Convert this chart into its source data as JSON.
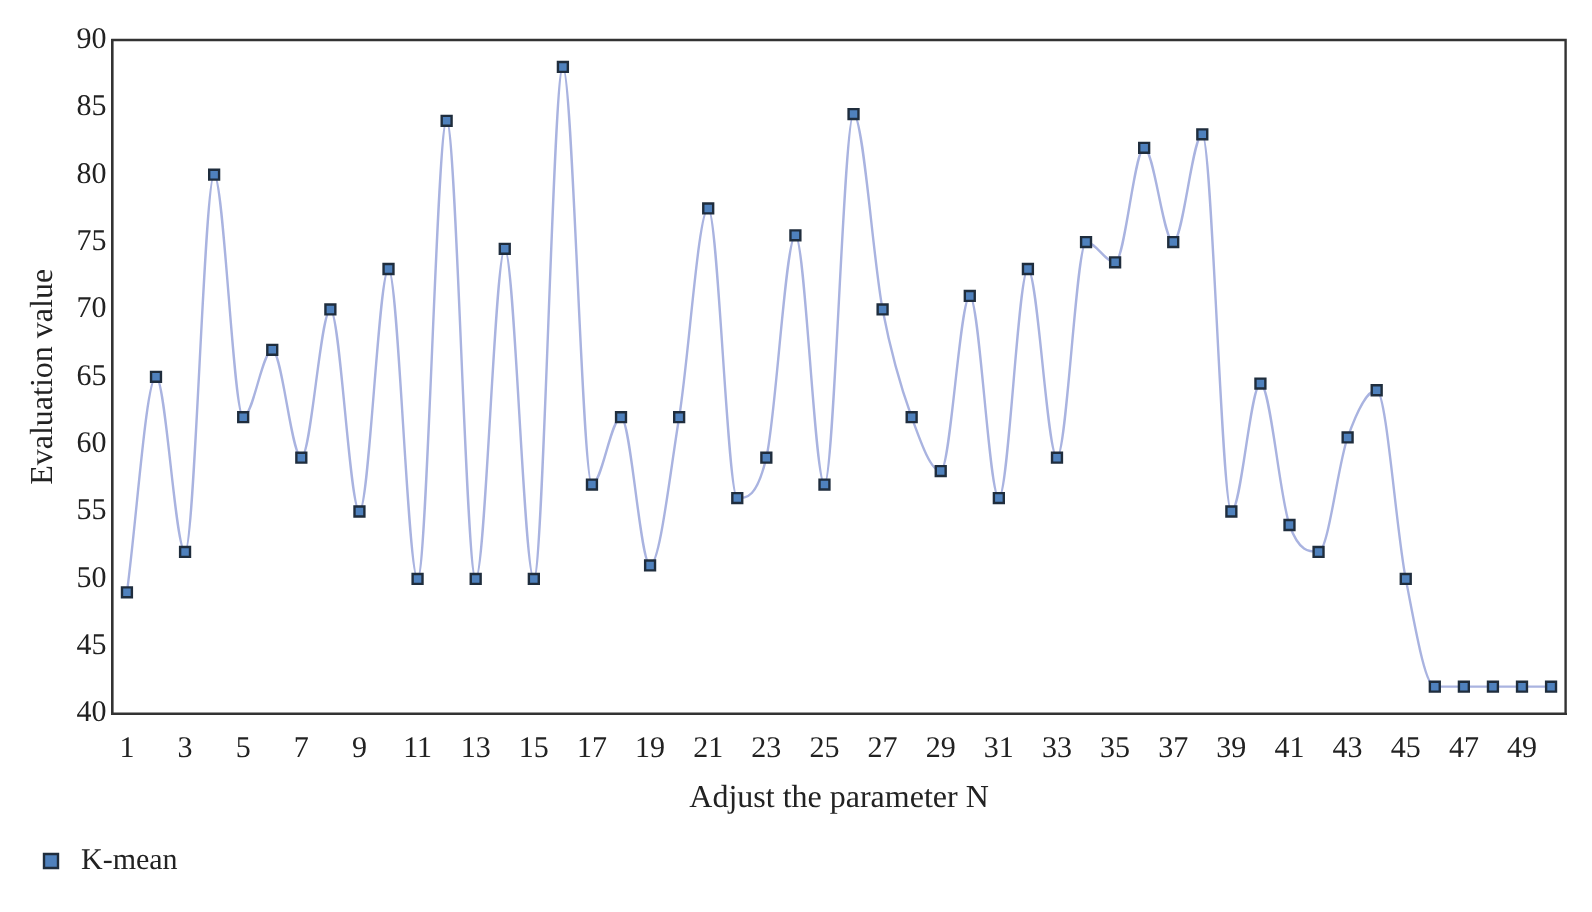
{
  "chart_data": {
    "type": "line",
    "xlabel": "Adjust the parameter N",
    "ylabel": "Evaluation value",
    "x": [
      1,
      2,
      3,
      4,
      5,
      6,
      7,
      8,
      9,
      10,
      11,
      12,
      13,
      14,
      15,
      16,
      17,
      18,
      19,
      20,
      21,
      22,
      23,
      24,
      25,
      26,
      27,
      28,
      29,
      30,
      31,
      32,
      33,
      34,
      35,
      36,
      37,
      38,
      39,
      40,
      41,
      42,
      43,
      44,
      45,
      46,
      47,
      48,
      49,
      50
    ],
    "series": [
      {
        "name": "K-mean",
        "color": "#a9b3e0",
        "values": [
          49,
          65,
          52,
          80,
          62,
          67,
          59,
          70,
          55,
          73,
          50,
          84,
          50,
          74.5,
          50,
          88,
          57,
          62,
          51,
          62,
          77.5,
          56,
          59,
          75.5,
          57,
          84.5,
          70,
          62,
          58,
          71,
          56,
          73,
          59,
          75,
          73.5,
          82,
          75,
          83,
          55,
          64.5,
          54,
          52,
          60.5,
          64,
          50,
          42,
          42,
          42,
          42,
          42
        ]
      }
    ],
    "xlim": [
      0.5,
      50.5
    ],
    "xticks": [
      1,
      3,
      5,
      7,
      9,
      11,
      13,
      15,
      17,
      19,
      21,
      23,
      25,
      27,
      29,
      31,
      33,
      35,
      37,
      39,
      41,
      43,
      45,
      47,
      49
    ],
    "ylim": [
      40,
      90
    ],
    "yticks": [
      40,
      45,
      50,
      55,
      60,
      65,
      70,
      75,
      80,
      85,
      90
    ],
    "grid": false,
    "legend": "bottom left",
    "marker": "square",
    "line_style": "solid"
  }
}
